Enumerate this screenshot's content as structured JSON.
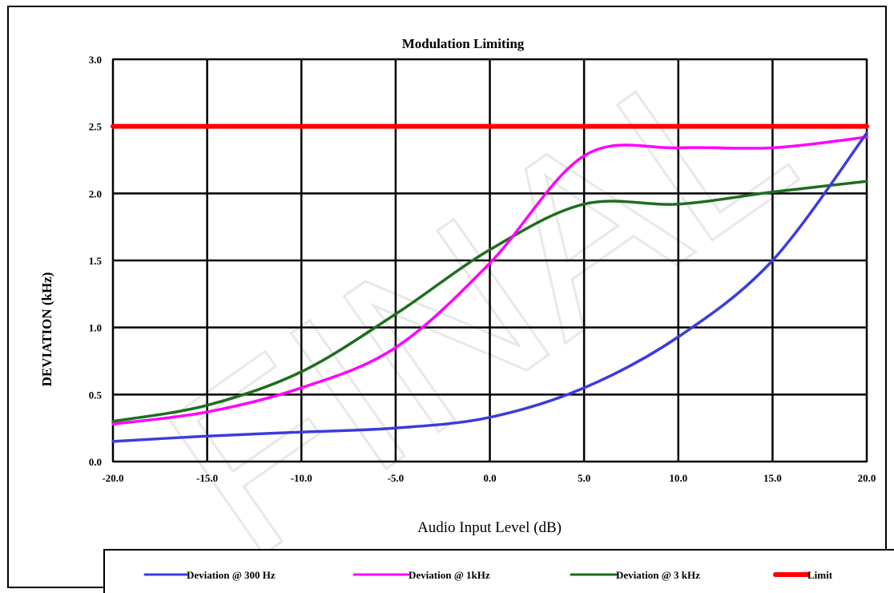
{
  "chart_data": {
    "type": "line",
    "title": "Modulation Limiting",
    "xlabel": "Audio Input Level (dB)",
    "ylabel": "DEVIATION (kHz)",
    "xlim": [
      -20,
      20
    ],
    "ylim": [
      0,
      3
    ],
    "grid": true,
    "legend_position": "bottom",
    "x_ticks": [
      "-20.0",
      "-15.0",
      "-10.0",
      "-5.0",
      "0.0",
      "5.0",
      "10.0",
      "15.0",
      "20.0"
    ],
    "y_ticks": [
      "0.0",
      "0.5",
      "1.0",
      "1.5",
      "2.0",
      "2.5",
      "3.0"
    ],
    "x": [
      -20,
      -15,
      -10,
      -5,
      0,
      5,
      10,
      15,
      20
    ],
    "series": [
      {
        "name": "Deviation @ 300 Hz",
        "color": "#3c3cdc",
        "values": [
          0.15,
          0.19,
          0.22,
          0.25,
          0.33,
          0.55,
          0.93,
          1.5,
          2.45
        ]
      },
      {
        "name": "Deviation @ 1kHz",
        "color": "#ff00ff",
        "values": [
          0.28,
          0.37,
          0.55,
          0.85,
          1.48,
          2.28,
          2.34,
          2.34,
          2.42
        ]
      },
      {
        "name": "Deviation @ 3 kHz",
        "color": "#1e6e1e",
        "values": [
          0.3,
          0.42,
          0.67,
          1.1,
          1.58,
          1.92,
          1.92,
          2.01,
          2.09
        ]
      },
      {
        "name": "Limit",
        "color": "#ff0000",
        "values": [
          2.5,
          2.5,
          2.5,
          2.5,
          2.5,
          2.5,
          2.5,
          2.5,
          2.5
        ]
      }
    ],
    "watermark": "FINAL"
  }
}
